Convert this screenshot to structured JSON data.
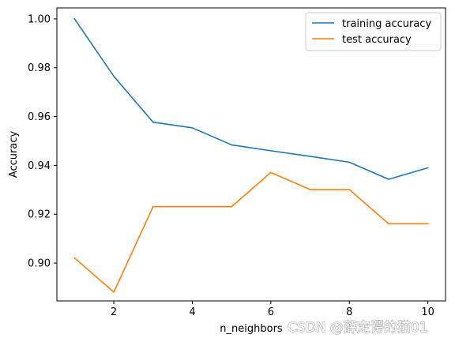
{
  "chart_data": {
    "type": "line",
    "title": "",
    "xlabel": "n_neighbors",
    "ylabel": "Accuracy",
    "x": [
      1,
      2,
      3,
      4,
      5,
      6,
      7,
      8,
      9,
      10
    ],
    "xlim": [
      0.55,
      10.45
    ],
    "ylim": [
      0.8845,
      1.0045
    ],
    "xticks": [
      2,
      4,
      6,
      8,
      10
    ],
    "yticks": [
      0.9,
      0.92,
      0.94,
      0.96,
      0.98,
      1.0
    ],
    "ytick_labels": [
      "0.90",
      "0.92",
      "0.94",
      "0.96",
      "0.98",
      "1.00"
    ],
    "grid": false,
    "legend_position": "top-right",
    "series": [
      {
        "name": "training accuracy",
        "color": "#1f77b4",
        "values": [
          1.0,
          0.9765,
          0.9577,
          0.9554,
          0.9484,
          0.946,
          0.9437,
          0.9413,
          0.9343,
          0.939
        ]
      },
      {
        "name": "test accuracy",
        "color": "#ff7f0e",
        "values": [
          0.9021,
          0.8881,
          0.9231,
          0.9231,
          0.9231,
          0.9371,
          0.9301,
          0.9301,
          0.9161,
          0.9161
        ]
      }
    ]
  },
  "watermark": "CSDN @薛定谔的猫01"
}
